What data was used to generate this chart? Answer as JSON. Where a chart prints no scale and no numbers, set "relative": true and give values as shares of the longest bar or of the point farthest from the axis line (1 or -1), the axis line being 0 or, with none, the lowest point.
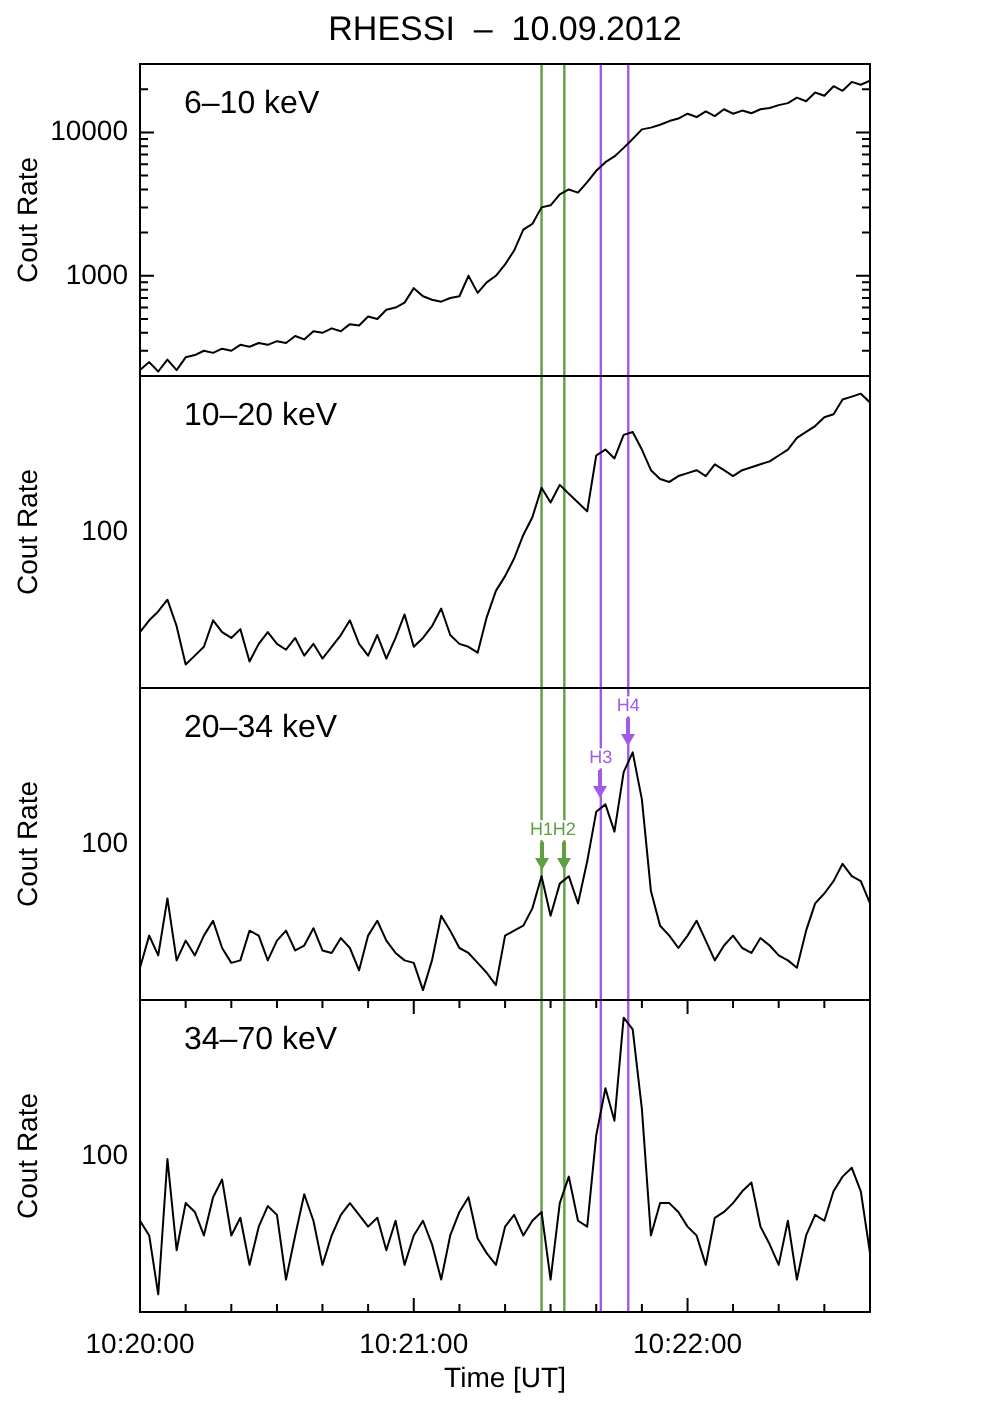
{
  "chart_data": [
    {
      "type": "line",
      "title": "RHESSI  –  10.09.2012",
      "ylabel": "Cout Rate",
      "log": true,
      "tick_labels": "y",
      "x": [
        10.33333,
        10.33389,
        10.33444,
        10.335,
        10.33556,
        10.33611,
        10.33667,
        10.33722,
        10.33778,
        10.33833,
        10.33889,
        10.33944,
        10.34,
        10.34056,
        10.34111,
        10.34167,
        10.34222,
        10.34278,
        10.34333,
        10.34389,
        10.34444,
        10.345,
        10.34556,
        10.34611,
        10.34667,
        10.34722,
        10.34778,
        10.34833,
        10.34889,
        10.34944,
        10.35,
        10.35056,
        10.35111,
        10.35167,
        10.35222,
        10.35278,
        10.35333,
        10.35389,
        10.35444,
        10.355,
        10.35556,
        10.35611,
        10.35667,
        10.35722,
        10.35778,
        10.35833,
        10.35889,
        10.35944,
        10.36,
        10.36056,
        10.36111,
        10.36167,
        10.36222,
        10.36278,
        10.36333,
        10.36389,
        10.36444,
        10.365,
        10.36556,
        10.36611,
        10.36667,
        10.36722,
        10.36778,
        10.36833,
        10.36889,
        10.36944,
        10.37,
        10.37056,
        10.37111,
        10.37167,
        10.37222,
        10.37278,
        10.37333,
        10.37389,
        10.37444,
        10.375,
        10.37556,
        10.37611,
        10.37667,
        10.37722,
        10.37778
      ],
      "series": [
        {
          "name": "6–10 keV",
          "color": "#000000",
          "values": [
            220,
            250,
            215,
            260,
            220,
            270,
            280,
            300,
            290,
            310,
            300,
            330,
            320,
            340,
            330,
            350,
            340,
            380,
            360,
            410,
            400,
            430,
            410,
            460,
            450,
            520,
            500,
            580,
            600,
            650,
            820,
            720,
            680,
            660,
            700,
            720,
            1000,
            760,
            900,
            1000,
            1200,
            1500,
            2100,
            2300,
            3000,
            3100,
            3700,
            4000,
            3800,
            4500,
            5400,
            6200,
            6800,
            7800,
            9000,
            10500,
            10800,
            11300,
            12000,
            12500,
            13500,
            12800,
            14000,
            13000,
            14500,
            13500,
            14200,
            13600,
            14500,
            14800,
            15500,
            16000,
            17500,
            16500,
            19000,
            18000,
            21000,
            19500,
            22500,
            21500,
            23000
          ]
        }
      ],
      "xlim": [
        10.33333,
        10.37778
      ],
      "ylim": [
        200,
        30000
      ],
      "yticks": [
        {
          "value": 300,
          "label": null
        },
        {
          "value": 400,
          "label": null
        },
        {
          "value": 500,
          "label": null
        },
        {
          "value": 600,
          "label": null
        },
        {
          "value": 700,
          "label": null
        },
        {
          "value": 800,
          "label": null
        },
        {
          "value": 900,
          "label": null
        },
        1000,
        {
          "value": 2000,
          "label": null
        },
        {
          "value": 3000,
          "label": null
        },
        {
          "value": 4000,
          "label": null
        },
        {
          "value": 5000,
          "label": null
        },
        {
          "value": 6000,
          "label": null
        },
        {
          "value": 7000,
          "label": null
        },
        {
          "value": 8000,
          "label": null
        },
        {
          "value": 9000,
          "label": null
        },
        10000,
        {
          "value": 20000,
          "label": null
        }
      ],
      "ref_lines": [
        {
          "axis": "x",
          "value": 10.35778,
          "color": "#5f9f3f"
        },
        {
          "axis": "x",
          "value": 10.35917,
          "color": "#5f9f3f"
        },
        {
          "axis": "x",
          "value": 10.36139,
          "color": "#a35be6"
        },
        {
          "axis": "x",
          "value": 10.36306,
          "color": "#a35be6"
        }
      ]
    },
    {
      "type": "line",
      "ylabel": "Cout Rate",
      "relative": true,
      "tick_labels": false,
      "x": [
        10.33333,
        10.33389,
        10.33444,
        10.335,
        10.33556,
        10.33611,
        10.33667,
        10.33722,
        10.33778,
        10.33833,
        10.33889,
        10.33944,
        10.34,
        10.34056,
        10.34111,
        10.34167,
        10.34222,
        10.34278,
        10.34333,
        10.34389,
        10.34444,
        10.345,
        10.34556,
        10.34611,
        10.34667,
        10.34722,
        10.34778,
        10.34833,
        10.34889,
        10.34944,
        10.35,
        10.35056,
        10.35111,
        10.35167,
        10.35222,
        10.35278,
        10.35333,
        10.35389,
        10.35444,
        10.355,
        10.35556,
        10.35611,
        10.35667,
        10.35722,
        10.35778,
        10.35833,
        10.35889,
        10.35944,
        10.36,
        10.36056,
        10.36111,
        10.36167,
        10.36222,
        10.36278,
        10.36333,
        10.36389,
        10.36444,
        10.365,
        10.36556,
        10.36611,
        10.36667,
        10.36722,
        10.36778,
        10.36833,
        10.36889,
        10.36944,
        10.37,
        10.37056,
        10.37111,
        10.37167,
        10.37222,
        10.37278,
        10.37333,
        10.37389,
        10.37444,
        10.375,
        10.37556,
        10.37611,
        10.37667,
        10.37722,
        10.37778
      ],
      "series": [
        {
          "name": "10–20 keV",
          "color": "#000000",
          "values": [
            0.19,
            0.23,
            0.26,
            0.3,
            0.21,
            0.08,
            0.11,
            0.14,
            0.23,
            0.19,
            0.17,
            0.2,
            0.09,
            0.15,
            0.19,
            0.15,
            0.13,
            0.17,
            0.11,
            0.15,
            0.1,
            0.14,
            0.18,
            0.23,
            0.15,
            0.11,
            0.18,
            0.1,
            0.17,
            0.25,
            0.14,
            0.17,
            0.21,
            0.27,
            0.18,
            0.15,
            0.14,
            0.12,
            0.24,
            0.33,
            0.38,
            0.44,
            0.52,
            0.58,
            0.68,
            0.63,
            0.69,
            0.66,
            0.63,
            0.6,
            0.79,
            0.81,
            0.78,
            0.86,
            0.87,
            0.81,
            0.74,
            0.71,
            0.7,
            0.72,
            0.73,
            0.74,
            0.72,
            0.76,
            0.74,
            0.72,
            0.74,
            0.75,
            0.76,
            0.77,
            0.79,
            0.81,
            0.85,
            0.87,
            0.89,
            0.92,
            0.93,
            0.98,
            0.99,
            1,
            0.97
          ]
        }
      ],
      "xlim": [
        10.33333,
        10.37778
      ],
      "ref_lines": [
        {
          "axis": "x",
          "value": 10.35778,
          "color": "#5f9f3f"
        },
        {
          "axis": "x",
          "value": 10.35917,
          "color": "#5f9f3f"
        },
        {
          "axis": "x",
          "value": 10.36139,
          "color": "#a35be6"
        },
        {
          "axis": "x",
          "value": 10.36306,
          "color": "#a35be6"
        }
      ],
      "annotations": [
        "100"
      ]
    },
    {
      "type": "line",
      "ylabel": "Cout Rate",
      "relative": true,
      "tick_labels": false,
      "x": [
        10.33333,
        10.33389,
        10.33444,
        10.335,
        10.33556,
        10.33611,
        10.33667,
        10.33722,
        10.33778,
        10.33833,
        10.33889,
        10.33944,
        10.34,
        10.34056,
        10.34111,
        10.34167,
        10.34222,
        10.34278,
        10.34333,
        10.34389,
        10.34444,
        10.345,
        10.34556,
        10.34611,
        10.34667,
        10.34722,
        10.34778,
        10.34833,
        10.34889,
        10.34944,
        10.35,
        10.35056,
        10.35111,
        10.35167,
        10.35222,
        10.35278,
        10.35333,
        10.35389,
        10.35444,
        10.355,
        10.35556,
        10.35611,
        10.35667,
        10.35722,
        10.35778,
        10.35833,
        10.35889,
        10.35944,
        10.36,
        10.36056,
        10.36111,
        10.36167,
        10.36222,
        10.36278,
        10.36333,
        10.36389,
        10.36444,
        10.365,
        10.36556,
        10.36611,
        10.36667,
        10.36722,
        10.36778,
        10.36833,
        10.36889,
        10.36944,
        10.37,
        10.37056,
        10.37111,
        10.37167,
        10.37222,
        10.37278,
        10.37333,
        10.37389,
        10.37444,
        10.375,
        10.37556,
        10.37611,
        10.37667,
        10.37722,
        10.37778
      ],
      "series": [
        {
          "name": "20–34 keV",
          "color": "#000000",
          "values": [
            0.13,
            0.26,
            0.18,
            0.41,
            0.16,
            0.24,
            0.18,
            0.26,
            0.32,
            0.21,
            0.15,
            0.16,
            0.28,
            0.26,
            0.16,
            0.24,
            0.28,
            0.2,
            0.22,
            0.29,
            0.2,
            0.19,
            0.25,
            0.21,
            0.12,
            0.26,
            0.32,
            0.24,
            0.19,
            0.16,
            0.15,
            0.04,
            0.16,
            0.34,
            0.28,
            0.21,
            0.19,
            0.15,
            0.11,
            0.06,
            0.26,
            0.28,
            0.3,
            0.37,
            0.5,
            0.34,
            0.47,
            0.5,
            0.39,
            0.56,
            0.76,
            0.79,
            0.68,
            0.92,
            1,
            0.81,
            0.44,
            0.3,
            0.26,
            0.21,
            0.26,
            0.32,
            0.24,
            0.16,
            0.22,
            0.26,
            0.21,
            0.19,
            0.25,
            0.22,
            0.18,
            0.16,
            0.13,
            0.28,
            0.39,
            0.43,
            0.48,
            0.55,
            0.5,
            0.48,
            0.39
          ]
        }
      ],
      "xlim": [
        10.33333,
        10.37778
      ],
      "ref_lines": [
        {
          "axis": "x",
          "value": 10.35778,
          "color": "#5f9f3f"
        },
        {
          "axis": "x",
          "value": 10.35917,
          "color": "#5f9f3f"
        },
        {
          "axis": "x",
          "value": 10.36139,
          "color": "#a35be6"
        },
        {
          "axis": "x",
          "value": 10.36306,
          "color": "#a35be6"
        }
      ],
      "annotations": [
        "100",
        {
          "text": "H1",
          "x": 10.35778,
          "y": 0.5
        },
        {
          "text": "H2",
          "x": 10.35917,
          "y": 0.5
        },
        {
          "text": "H3",
          "x": 10.36139,
          "y": 0.79
        },
        {
          "text": "H4",
          "x": 10.36306,
          "y": 1
        }
      ]
    },
    {
      "type": "line",
      "xlabel": "Time [UT]",
      "ylabel": "Cout Rate",
      "relative": true,
      "x": [
        10.33333,
        10.33389,
        10.33444,
        10.335,
        10.33556,
        10.33611,
        10.33667,
        10.33722,
        10.33778,
        10.33833,
        10.33889,
        10.33944,
        10.34,
        10.34056,
        10.34111,
        10.34167,
        10.34222,
        10.34278,
        10.34333,
        10.34389,
        10.34444,
        10.345,
        10.34556,
        10.34611,
        10.34667,
        10.34722,
        10.34778,
        10.34833,
        10.34889,
        10.34944,
        10.35,
        10.35056,
        10.35111,
        10.35167,
        10.35222,
        10.35278,
        10.35333,
        10.35389,
        10.35444,
        10.355,
        10.35556,
        10.35611,
        10.35667,
        10.35722,
        10.35778,
        10.35833,
        10.35889,
        10.35944,
        10.36,
        10.36056,
        10.36111,
        10.36167,
        10.36222,
        10.36278,
        10.36333,
        10.36389,
        10.36444,
        10.365,
        10.36556,
        10.36611,
        10.36667,
        10.36722,
        10.36778,
        10.36833,
        10.36889,
        10.36944,
        10.37,
        10.37056,
        10.37111,
        10.37167,
        10.37222,
        10.37278,
        10.37333,
        10.37389,
        10.37444,
        10.375,
        10.37556,
        10.37611,
        10.37667,
        10.37722,
        10.37778
      ],
      "series": [
        {
          "name": "34–70 keV",
          "color": "#000000",
          "values": [
            0.31,
            0.26,
            0.06,
            0.52,
            0.21,
            0.37,
            0.34,
            0.26,
            0.39,
            0.45,
            0.26,
            0.32,
            0.16,
            0.29,
            0.36,
            0.33,
            0.11,
            0.26,
            0.4,
            0.31,
            0.16,
            0.26,
            0.33,
            0.37,
            0.33,
            0.29,
            0.32,
            0.21,
            0.31,
            0.16,
            0.26,
            0.31,
            0.23,
            0.11,
            0.26,
            0.34,
            0.39,
            0.25,
            0.2,
            0.16,
            0.29,
            0.33,
            0.26,
            0.31,
            0.34,
            0.11,
            0.37,
            0.46,
            0.31,
            0.29,
            0.6,
            0.76,
            0.65,
            1,
            0.96,
            0.69,
            0.26,
            0.37,
            0.37,
            0.34,
            0.29,
            0.26,
            0.16,
            0.32,
            0.34,
            0.37,
            0.41,
            0.44,
            0.29,
            0.23,
            0.16,
            0.31,
            0.11,
            0.26,
            0.33,
            0.31,
            0.41,
            0.46,
            0.49,
            0.41,
            0.2
          ]
        }
      ],
      "xlim": [
        10.33333,
        10.37778
      ],
      "xticks": [
        {
          "value": 10.33333,
          "label": "10:20:00"
        },
        {
          "value": 10.33611,
          "label": null
        },
        {
          "value": 10.33889,
          "label": null
        },
        {
          "value": 10.34167,
          "label": null
        },
        {
          "value": 10.34444,
          "label": null
        },
        {
          "value": 10.34722,
          "label": null
        },
        {
          "value": 10.35,
          "label": "10:21:00"
        },
        {
          "value": 10.35278,
          "label": null
        },
        {
          "value": 10.35556,
          "label": null
        },
        {
          "value": 10.35833,
          "label": null
        },
        {
          "value": 10.36111,
          "label": null
        },
        {
          "value": 10.36389,
          "label": null
        },
        {
          "value": 10.36667,
          "label": "10:22:00"
        },
        {
          "value": 10.36944,
          "label": null
        },
        {
          "value": 10.37222,
          "label": null
        },
        {
          "value": 10.375,
          "label": null
        }
      ],
      "ref_lines": [
        {
          "axis": "x",
          "value": 10.35778,
          "color": "#5f9f3f"
        },
        {
          "axis": "x",
          "value": 10.35917,
          "color": "#5f9f3f"
        },
        {
          "axis": "x",
          "value": 10.36139,
          "color": "#a35be6"
        },
        {
          "axis": "x",
          "value": 10.36306,
          "color": "#a35be6"
        }
      ],
      "annotations": [
        "100"
      ]
    }
  ]
}
